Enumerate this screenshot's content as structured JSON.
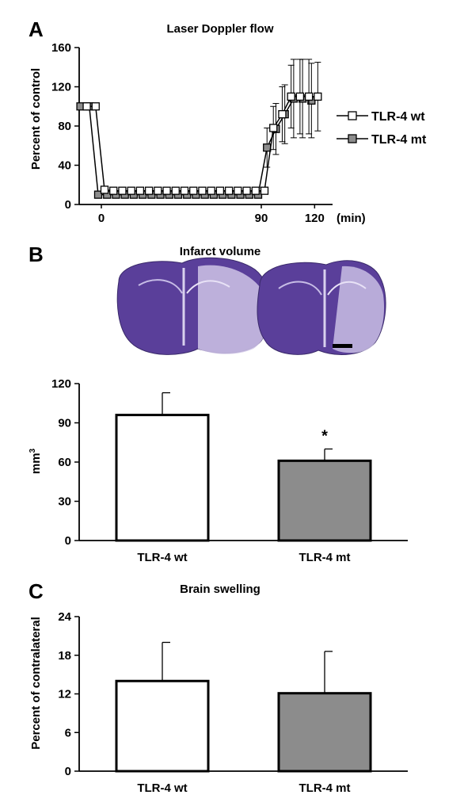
{
  "colors": {
    "wt": "#ffffff",
    "mt": "#8c8c8c",
    "stain": "#5a3f9a",
    "stroke": "#000000"
  },
  "chart_data": [
    {
      "panel": "A",
      "type": "line",
      "title": "Laser Doppler flow",
      "ylabel": "Percent of control",
      "xlabel": "",
      "x_unit_label": "(min)",
      "ylim": [
        0,
        160
      ],
      "yticks": [
        0,
        40,
        80,
        120,
        160
      ],
      "xticks": [
        0,
        90,
        120
      ],
      "legend_position": "right",
      "series": [
        {
          "name": "TLR-4 wt",
          "marker": "open-square",
          "x": [
            -10,
            -5,
            0,
            5,
            10,
            15,
            20,
            25,
            30,
            35,
            40,
            45,
            50,
            55,
            60,
            65,
            70,
            75,
            80,
            85,
            90,
            95,
            100,
            105,
            110,
            115,
            120
          ],
          "y": [
            100,
            100,
            15,
            14,
            14,
            14,
            14,
            14,
            14,
            14,
            14,
            14,
            14,
            14,
            14,
            14,
            14,
            14,
            14,
            14,
            14,
            78,
            92,
            110,
            110,
            110,
            110
          ],
          "err": [
            0,
            0,
            3,
            3,
            3,
            3,
            3,
            3,
            3,
            3,
            3,
            3,
            3,
            3,
            3,
            3,
            3,
            3,
            3,
            3,
            3,
            22,
            28,
            32,
            38,
            38,
            35
          ]
        },
        {
          "name": "TLR-4 mt",
          "marker": "filled-square",
          "x": [
            -10,
            -5,
            0,
            5,
            10,
            15,
            20,
            25,
            30,
            35,
            40,
            45,
            50,
            55,
            60,
            65,
            70,
            75,
            80,
            85,
            90,
            95,
            100,
            105,
            110,
            115,
            120
          ],
          "y": [
            100,
            100,
            10,
            10,
            10,
            10,
            10,
            10,
            10,
            10,
            10,
            10,
            10,
            10,
            10,
            10,
            10,
            10,
            10,
            10,
            10,
            58,
            77,
            92,
            108,
            108,
            106
          ],
          "err": [
            0,
            0,
            3,
            3,
            3,
            3,
            3,
            3,
            3,
            3,
            3,
            3,
            3,
            3,
            3,
            3,
            3,
            3,
            3,
            3,
            3,
            20,
            26,
            30,
            40,
            40,
            38
          ]
        }
      ]
    },
    {
      "panel": "B",
      "type": "bar",
      "title": "Infarct volume",
      "ylabel": "mm",
      "ylabel_superscript": "3",
      "ylim": [
        0,
        120
      ],
      "yticks": [
        0,
        30,
        60,
        90,
        120
      ],
      "categories": [
        "TLR-4 wt",
        "TLR-4 mt"
      ],
      "values": [
        96,
        61
      ],
      "errors": [
        17,
        9
      ],
      "significance": [
        "",
        "*"
      ]
    },
    {
      "panel": "C",
      "type": "bar",
      "title": "Brain swelling",
      "ylabel": "Percent of contralateral",
      "ylim": [
        0,
        24
      ],
      "yticks": [
        0,
        6,
        12,
        18,
        24
      ],
      "categories": [
        "TLR-4 wt",
        "TLR-4 mt"
      ],
      "values": [
        14,
        12.1
      ],
      "errors": [
        6,
        6.5
      ]
    }
  ]
}
